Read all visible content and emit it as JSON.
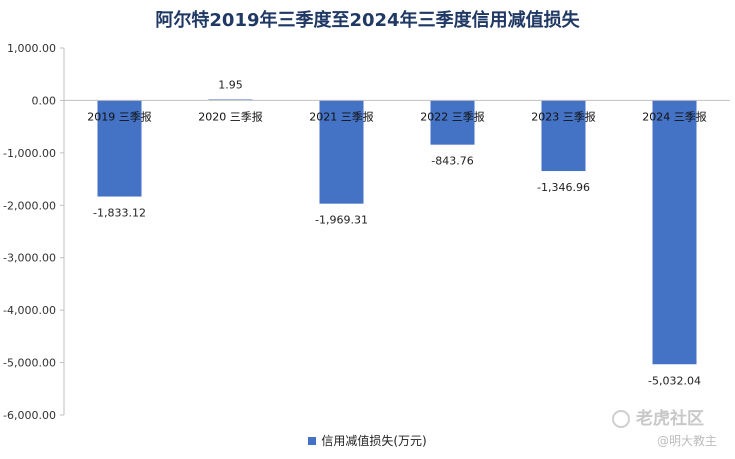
{
  "title": "阿尔特2019年三季度至2024年三季度信用减值损失",
  "chart_data": {
    "type": "bar",
    "title": "阿尔特2019年三季度至2024年三季度信用减值损失",
    "categories": [
      "2019 三季报",
      "2020 三季报",
      "2021 三季报",
      "2022 三季报",
      "2023 三季报",
      "2024 三季报"
    ],
    "series": [
      {
        "name": "信用减值损失(万元)",
        "values": [
          -1833.12,
          1.95,
          -1969.31,
          -843.76,
          -1346.96,
          -5032.04
        ],
        "labels": [
          "-1,833.12",
          "1.95",
          "-1,969.31",
          "-843.76",
          "-1,346.96",
          "-5,032.04"
        ]
      }
    ],
    "ylim": [
      -6000,
      1000
    ],
    "yticks": [
      1000,
      0,
      -1000,
      -2000,
      -3000,
      -4000,
      -5000,
      -6000
    ],
    "ytick_labels": [
      "1,000.00",
      "0.00",
      "-1,000.00",
      "-2,000.00",
      "-3,000.00",
      "-4,000.00",
      "-5,000.00",
      "-6,000.00"
    ],
    "color": "#4472c4",
    "grid": false,
    "legend_position": "bottom"
  },
  "legend": {
    "label": "信用减值损失(万元)"
  },
  "watermark": {
    "brand": "老虎社区",
    "author": "@明大教主"
  }
}
